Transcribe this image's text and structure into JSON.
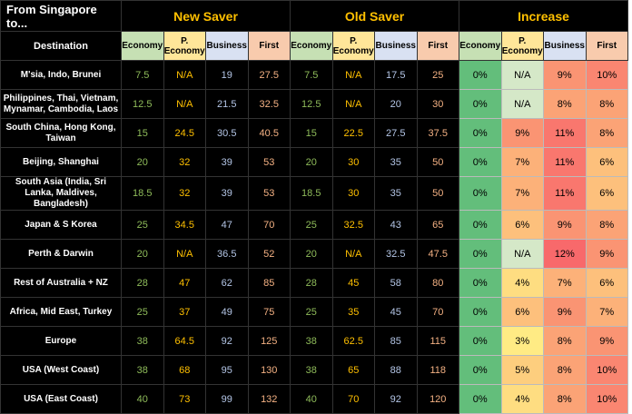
{
  "header": {
    "title": "From Singapore to...",
    "destination_label": "Destination",
    "groups": [
      "New Saver",
      "Old Saver",
      "Increase"
    ],
    "columns": [
      "Economy",
      "P. Economy",
      "Business",
      "First"
    ]
  },
  "rows": [
    {
      "destination": "M'sia, Indo, Brunei",
      "cells": [
        7.5,
        "N/A",
        19,
        27.5,
        7.5,
        "N/A",
        17.5,
        25,
        "0%",
        "N/A",
        "9%",
        "10%"
      ]
    },
    {
      "destination": "Philippines, Thai, Vietnam, Mynamar, Cambodia, Laos",
      "cells": [
        12.5,
        "N/A",
        21.5,
        32.5,
        12.5,
        "N/A",
        20,
        30,
        "0%",
        "N/A",
        "8%",
        "8%"
      ]
    },
    {
      "destination": "South China, Hong Kong, Taiwan",
      "cells": [
        15,
        24.5,
        30.5,
        40.5,
        15,
        22.5,
        27.5,
        37.5,
        "0%",
        "9%",
        "11%",
        "8%"
      ]
    },
    {
      "destination": "Beijing, Shanghai",
      "cells": [
        20,
        32,
        39,
        53,
        20,
        30,
        35,
        50,
        "0%",
        "7%",
        "11%",
        "6%"
      ]
    },
    {
      "destination": "South Asia (India, Sri Lanka, Maldives, Bangladesh)",
      "cells": [
        18.5,
        32,
        39,
        53,
        18.5,
        30,
        35,
        50,
        "0%",
        "7%",
        "11%",
        "6%"
      ]
    },
    {
      "destination": "Japan & S Korea",
      "cells": [
        25,
        34.5,
        47,
        70,
        25,
        32.5,
        43,
        65,
        "0%",
        "6%",
        "9%",
        "8%"
      ]
    },
    {
      "destination": "Perth & Darwin",
      "cells": [
        20,
        "N/A",
        36.5,
        52,
        20,
        "N/A",
        32.5,
        47.5,
        "0%",
        "N/A",
        "12%",
        "9%"
      ]
    },
    {
      "destination": "Rest of Australia + NZ",
      "cells": [
        28,
        47,
        62,
        85,
        28,
        45,
        58,
        80,
        "0%",
        "4%",
        "7%",
        "6%"
      ]
    },
    {
      "destination": "Africa, Mid East, Turkey",
      "cells": [
        25,
        37,
        49,
        75,
        25,
        35,
        45,
        70,
        "0%",
        "6%",
        "9%",
        "7%"
      ]
    },
    {
      "destination": "Europe",
      "cells": [
        38,
        64.5,
        92,
        125,
        38,
        62.5,
        85,
        115,
        "0%",
        "3%",
        "8%",
        "9%"
      ]
    },
    {
      "destination": "USA (West Coast)",
      "cells": [
        38,
        68,
        95,
        130,
        38,
        65,
        88,
        118,
        "0%",
        "5%",
        "8%",
        "10%"
      ]
    },
    {
      "destination": "USA (East Coast)",
      "cells": [
        40,
        73,
        99,
        132,
        40,
        70,
        92,
        120,
        "0%",
        "4%",
        "8%",
        "10%"
      ]
    }
  ]
}
